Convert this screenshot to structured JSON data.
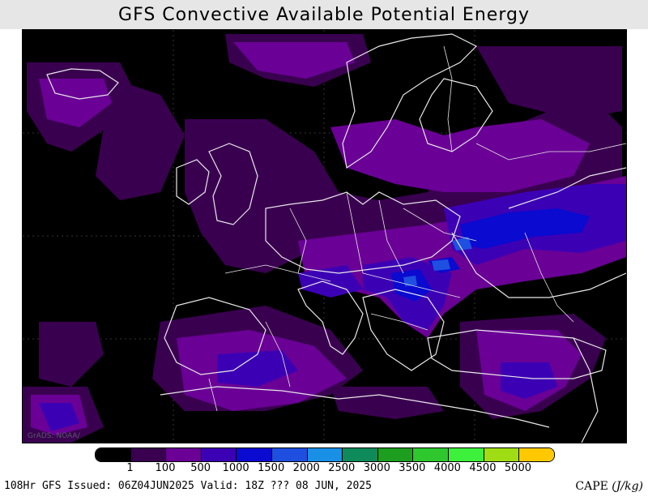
{
  "title": "GFS Convective Available Potential Energy",
  "credit": "GrADS: NOAA/",
  "legend": {
    "colors": [
      "#000000",
      "#3a0050",
      "#6a0096",
      "#3c00b4",
      "#0a0ad0",
      "#1f4fe0",
      "#1a8fe6",
      "#0f8a5a",
      "#1e9e1e",
      "#2ec82e",
      "#3cf03c",
      "#a0dc14",
      "#ffc800"
    ],
    "labels": [
      "1",
      "100",
      "500",
      "1000",
      "1500",
      "2000",
      "2500",
      "3000",
      "3500",
      "4000",
      "4500",
      "5000"
    ]
  },
  "footer": {
    "info": "108Hr GFS Issued: 06Z04JUN2025 Valid: 18Z ??? 08 JUN, 2025",
    "units_label": "CAPE",
    "units": "(J/kg)"
  }
}
